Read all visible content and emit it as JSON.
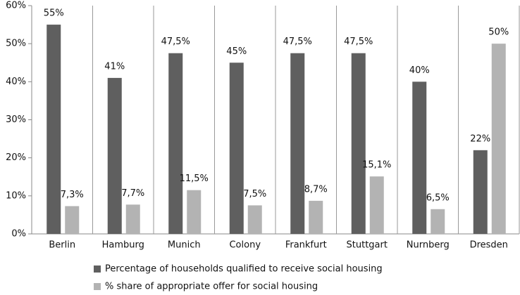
{
  "chart_data": {
    "type": "bar",
    "categories": [
      "Berlin",
      "Hamburg",
      "Munich",
      "Colony",
      "Frankfurt",
      "Stuttgart",
      "Nurnberg",
      "Dresden"
    ],
    "series": [
      {
        "name": "Percentage of households qualified to receive social housing",
        "color": "#5f5f5f",
        "values": [
          55,
          41,
          47.5,
          45,
          47.5,
          47.5,
          40,
          22
        ],
        "value_labels": [
          "55%",
          "41%",
          "47,5%",
          "45%",
          "47,5%",
          "47,5%",
          "40%",
          "22%"
        ]
      },
      {
        "name": "% share of appropriate offer for social housing",
        "color": "#b3b3b3",
        "values": [
          7.3,
          7.7,
          11.5,
          7.5,
          8.7,
          15.1,
          6.5,
          50
        ],
        "value_labels": [
          "7,3%",
          "7,7%",
          "11,5%",
          "7,5%",
          "8,7%",
          "15,1%",
          "6,5%",
          "50%"
        ]
      }
    ],
    "ylim": [
      0,
      60
    ],
    "yticks": [
      {
        "value": 0,
        "label": "0%"
      },
      {
        "value": 10,
        "label": "10%"
      },
      {
        "value": 20,
        "label": "20%"
      },
      {
        "value": 30,
        "label": "30%"
      },
      {
        "value": 40,
        "label": "40%"
      },
      {
        "value": 50,
        "label": "50%"
      },
      {
        "value": 60,
        "label": "60%"
      }
    ],
    "legend": "bottom"
  }
}
